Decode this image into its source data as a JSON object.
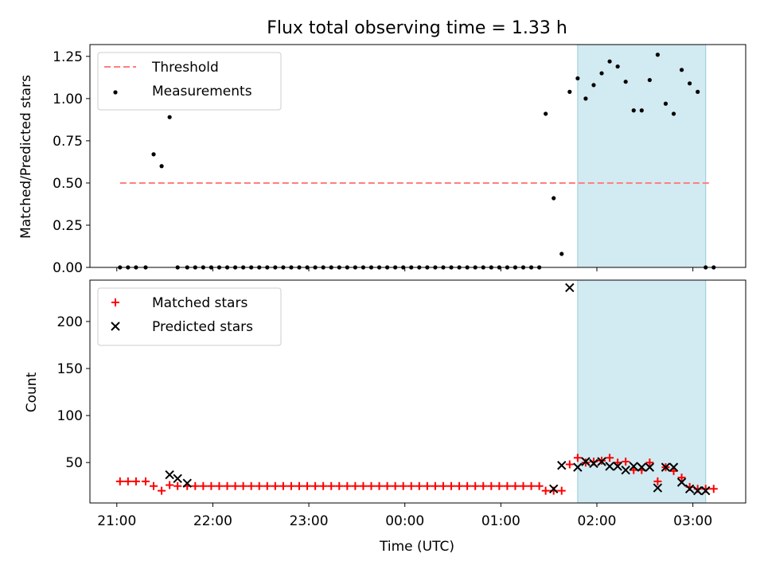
{
  "title": "Flux total observing time = 1.33 h",
  "chart_data": [
    {
      "type": "scatter",
      "ylabel": "Matched/Predicted stars",
      "xlabel": "",
      "ylim": [
        0,
        1.32
      ],
      "yticks": [
        0.0,
        0.25,
        0.5,
        0.75,
        1.0,
        1.25
      ],
      "ytick_labels": [
        "0.00",
        "0.25",
        "0.50",
        "0.75",
        "1.00",
        "1.25"
      ],
      "x_range_hours": [
        20.72,
        27.55
      ],
      "xticks": [
        "21:00",
        "22:00",
        "23:00",
        "00:00",
        "01:00",
        "02:00",
        "03:00"
      ],
      "xtick_hours": [
        21,
        22,
        23,
        24,
        25,
        26,
        27
      ],
      "grid": false,
      "legend_position": "upper-left",
      "highlight_span": {
        "start": "01:48",
        "end": "03:08",
        "color": "#add8e6"
      },
      "threshold": {
        "name": "Threshold",
        "value": 0.5,
        "from": "21:02",
        "to": "03:12",
        "color": "#ff7f7f"
      },
      "series": [
        {
          "name": "Measurements",
          "marker": "dot",
          "color": "#000000",
          "x": [
            "21:02",
            "21:07",
            "21:12",
            "21:18",
            "21:23",
            "21:28",
            "21:33",
            "21:38",
            "21:44",
            "21:49",
            "21:54",
            "21:59",
            "22:04",
            "22:09",
            "22:14",
            "22:19",
            "22:24",
            "22:29",
            "22:34",
            "22:39",
            "22:44",
            "22:49",
            "22:54",
            "22:59",
            "23:04",
            "23:09",
            "23:14",
            "23:19",
            "23:24",
            "23:29",
            "23:34",
            "23:39",
            "23:44",
            "23:49",
            "23:54",
            "23:59",
            "00:04",
            "00:09",
            "00:14",
            "00:19",
            "00:24",
            "00:29",
            "00:34",
            "00:39",
            "00:44",
            "00:49",
            "00:54",
            "00:59",
            "01:04",
            "01:09",
            "01:14",
            "01:19",
            "01:24",
            "01:28",
            "01:33",
            "01:38",
            "01:43",
            "01:48",
            "01:53",
            "01:58",
            "02:03",
            "02:08",
            "02:13",
            "02:18",
            "02:23",
            "02:28",
            "02:33",
            "02:38",
            "02:43",
            "02:48",
            "02:53",
            "02:58",
            "03:03",
            "03:08",
            "03:13"
          ],
          "y": [
            0,
            0,
            0,
            0,
            0.67,
            0.6,
            0.89,
            0,
            0,
            0,
            0,
            0,
            0,
            0,
            0,
            0,
            0,
            0,
            0,
            0,
            0,
            0,
            0,
            0,
            0,
            0,
            0,
            0,
            0,
            0,
            0,
            0,
            0,
            0,
            0,
            0,
            0,
            0,
            0,
            0,
            0,
            0,
            0,
            0,
            0,
            0,
            0,
            0,
            0,
            0,
            0,
            0,
            0,
            0.91,
            0.41,
            0.08,
            1.04,
            1.12,
            1.0,
            1.08,
            1.15,
            1.22,
            1.19,
            1.1,
            0.93,
            0.93,
            1.11,
            1.26,
            0.97,
            0.91,
            1.17,
            1.09,
            1.04,
            0,
            0
          ]
        }
      ]
    },
    {
      "type": "scatter",
      "ylabel": "Count",
      "xlabel": "Time (UTC)",
      "ylim": [
        7,
        244
      ],
      "yticks": [
        50,
        100,
        150,
        200
      ],
      "ytick_labels": [
        "50",
        "100",
        "150",
        "200"
      ],
      "x_range_hours": [
        20.72,
        27.55
      ],
      "xticks": [
        "21:00",
        "22:00",
        "23:00",
        "00:00",
        "01:00",
        "02:00",
        "03:00"
      ],
      "xtick_hours": [
        21,
        22,
        23,
        24,
        25,
        26,
        27
      ],
      "grid": false,
      "legend_position": "upper-left",
      "highlight_span": {
        "start": "01:48",
        "end": "03:08",
        "color": "#add8e6"
      },
      "series": [
        {
          "name": "Matched stars",
          "marker": "plus",
          "color": "#ff0000",
          "x": [
            "21:02",
            "21:07",
            "21:12",
            "21:18",
            "21:23",
            "21:28",
            "21:33",
            "21:38",
            "21:44",
            "21:49",
            "21:54",
            "21:59",
            "22:04",
            "22:09",
            "22:14",
            "22:19",
            "22:24",
            "22:29",
            "22:34",
            "22:39",
            "22:44",
            "22:49",
            "22:54",
            "22:59",
            "23:04",
            "23:09",
            "23:14",
            "23:19",
            "23:24",
            "23:29",
            "23:34",
            "23:39",
            "23:44",
            "23:49",
            "23:54",
            "23:59",
            "00:04",
            "00:09",
            "00:14",
            "00:19",
            "00:24",
            "00:29",
            "00:34",
            "00:39",
            "00:44",
            "00:49",
            "00:54",
            "00:59",
            "01:04",
            "01:09",
            "01:14",
            "01:19",
            "01:24",
            "01:28",
            "01:33",
            "01:38",
            "01:43",
            "01:48",
            "01:53",
            "01:58",
            "02:03",
            "02:08",
            "02:13",
            "02:18",
            "02:23",
            "02:28",
            "02:33",
            "02:38",
            "02:43",
            "02:48",
            "02:53",
            "02:58",
            "03:03",
            "03:08",
            "03:13"
          ],
          "y": [
            30,
            30,
            30,
            30,
            25,
            20,
            26,
            25,
            25,
            25,
            25,
            25,
            25,
            25,
            25,
            25,
            25,
            25,
            25,
            25,
            25,
            25,
            25,
            25,
            25,
            25,
            25,
            25,
            25,
            25,
            25,
            25,
            25,
            25,
            25,
            25,
            25,
            25,
            25,
            25,
            25,
            25,
            25,
            25,
            25,
            25,
            25,
            25,
            25,
            25,
            25,
            25,
            25,
            20,
            20,
            20,
            48,
            55,
            50,
            51,
            52,
            55,
            50,
            51,
            42,
            42,
            50,
            30,
            45,
            41,
            34,
            24,
            22,
            22,
            22
          ]
        },
        {
          "name": "Predicted stars",
          "marker": "x",
          "color": "#000000",
          "x": [
            "21:33",
            "21:38",
            "21:44",
            "01:33",
            "01:38",
            "01:43",
            "01:48",
            "01:53",
            "01:58",
            "02:03",
            "02:08",
            "02:13",
            "02:18",
            "02:23",
            "02:28",
            "02:33",
            "02:38",
            "02:43",
            "02:48",
            "02:53",
            "02:58",
            "03:03",
            "03:08"
          ],
          "y": [
            37,
            33,
            28,
            22,
            47,
            236,
            45,
            51,
            49,
            51,
            46,
            46,
            42,
            46,
            45,
            45,
            23,
            45,
            45,
            29,
            22,
            20,
            20
          ]
        }
      ]
    }
  ]
}
